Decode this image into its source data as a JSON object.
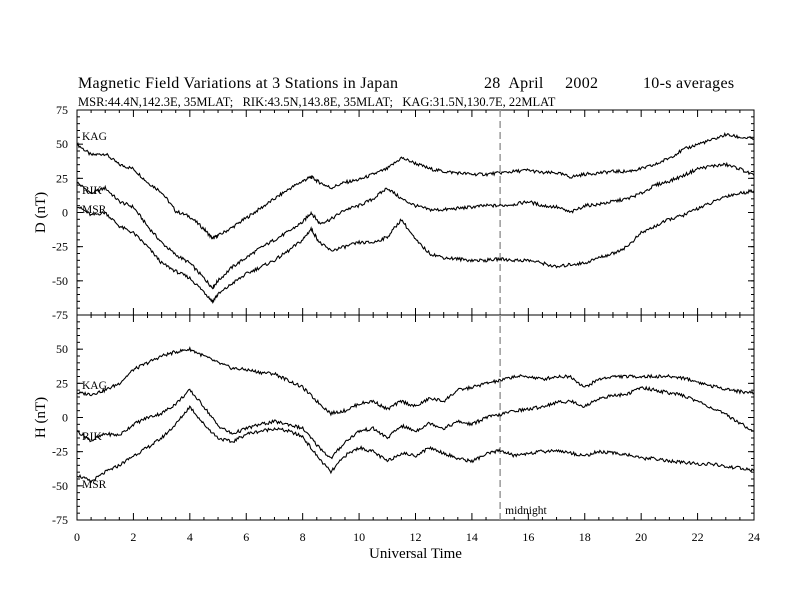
{
  "header": {
    "title": "Magnetic Field Variations at 3 Stations in Japan",
    "date": "28  April     2002",
    "averaging": "10-s averages",
    "stations_line": "MSR:44.4N,142.3E, 35MLAT;   RIK:43.5N,143.8E, 35MLAT;   KAG:31.5N,130.7E, 22MLAT"
  },
  "chart_data": [
    {
      "type": "line",
      "panel": "top",
      "ylabel": "D (nT)",
      "ylim": [
        -75,
        75
      ],
      "yticks": [
        75,
        50,
        25,
        0,
        -25,
        -50,
        -75
      ],
      "xlim": [
        0,
        24
      ],
      "xticks": [
        0,
        2,
        4,
        6,
        8,
        10,
        12,
        14,
        16,
        18,
        20,
        22,
        24
      ],
      "series": [
        {
          "name": "KAG",
          "x": [
            0,
            0.5,
            1,
            1.5,
            2,
            2.5,
            3,
            3.5,
            4,
            4.5,
            4.8,
            5,
            5.5,
            6,
            6.5,
            7,
            7.5,
            8,
            8.3,
            8.6,
            9,
            9.5,
            10,
            10.5,
            11,
            11.5,
            12,
            12.5,
            13,
            13.5,
            14,
            14.5,
            15,
            15.5,
            16,
            16.5,
            17,
            17.5,
            18,
            18.5,
            19,
            19.5,
            20,
            20.5,
            21,
            21.5,
            22,
            22.5,
            23,
            23.5,
            24
          ],
          "y": [
            50,
            42,
            43,
            35,
            32,
            22,
            15,
            1,
            -3,
            -12,
            -19,
            -17,
            -11,
            -4,
            3,
            10,
            17,
            23,
            26,
            22,
            18,
            22,
            24,
            28,
            32,
            40,
            36,
            32,
            30,
            29,
            28,
            28,
            29,
            30,
            31,
            29,
            29,
            26,
            28,
            29,
            30,
            30,
            32,
            35,
            40,
            46,
            50,
            53,
            57,
            55,
            54
          ]
        },
        {
          "name": "RIK",
          "x": [
            0,
            0.5,
            1,
            1.5,
            2,
            2.5,
            3,
            3.5,
            4,
            4.5,
            4.8,
            5,
            5.5,
            6,
            6.5,
            7,
            7.5,
            8,
            8.3,
            8.6,
            9,
            9.5,
            10,
            10.5,
            11,
            11.5,
            12,
            12.5,
            13,
            13.5,
            14,
            14.5,
            15,
            15.5,
            16,
            16.5,
            17,
            17.5,
            18,
            18.5,
            19,
            19.5,
            20,
            20.5,
            21,
            21.5,
            22,
            22.5,
            23,
            23.5,
            24
          ],
          "y": [
            22,
            14,
            18,
            8,
            4,
            -10,
            -22,
            -31,
            -37,
            -48,
            -55,
            -50,
            -40,
            -33,
            -26,
            -20,
            -14,
            -7,
            0,
            -8,
            -5,
            2,
            5,
            10,
            18,
            10,
            5,
            2,
            2,
            3,
            4,
            5,
            5,
            6,
            8,
            5,
            4,
            0,
            5,
            6,
            8,
            10,
            14,
            20,
            23,
            27,
            32,
            34,
            35,
            32,
            27
          ]
        },
        {
          "name": "MSR",
          "x": [
            0,
            0.5,
            1,
            1.5,
            2,
            2.5,
            3,
            3.5,
            4,
            4.5,
            4.8,
            5,
            5.5,
            6,
            6.5,
            7,
            7.5,
            8,
            8.3,
            8.6,
            9,
            9.5,
            10,
            10.5,
            11,
            11.5,
            12,
            12.5,
            13,
            13.5,
            14,
            14.5,
            15,
            15.5,
            16,
            16.5,
            17,
            17.5,
            18,
            18.5,
            19,
            19.5,
            20,
            20.5,
            21,
            21.5,
            22,
            22.5,
            23,
            23.5,
            24
          ],
          "y": [
            5,
            -2,
            0,
            -10,
            -15,
            -25,
            -37,
            -43,
            -48,
            -58,
            -65,
            -60,
            -52,
            -45,
            -40,
            -35,
            -28,
            -20,
            -12,
            -22,
            -28,
            -25,
            -22,
            -22,
            -18,
            -5,
            -20,
            -30,
            -33,
            -34,
            -35,
            -35,
            -34,
            -35,
            -35,
            -37,
            -40,
            -38,
            -37,
            -33,
            -30,
            -25,
            -15,
            -10,
            -5,
            -2,
            3,
            7,
            12,
            14,
            16
          ]
        }
      ]
    },
    {
      "type": "line",
      "panel": "bottom",
      "ylabel": "H (nT)",
      "xlabel": "Universal Time",
      "ylim": [
        -75,
        75
      ],
      "yticks": [
        50,
        25,
        0,
        -25,
        -50,
        -75
      ],
      "xlim": [
        0,
        24
      ],
      "xticks": [
        0,
        2,
        4,
        6,
        8,
        10,
        12,
        14,
        16,
        18,
        20,
        22,
        24
      ],
      "annotation": {
        "text": "midnight",
        "x": 15
      },
      "series": [
        {
          "name": "KAG",
          "x": [
            0,
            0.5,
            1,
            1.5,
            2,
            2.5,
            3,
            3.5,
            4,
            4.5,
            5,
            5.5,
            6,
            6.5,
            7,
            7.5,
            8,
            8.5,
            9,
            9.5,
            10,
            10.5,
            11,
            11.5,
            12,
            12.5,
            13,
            13.5,
            14,
            14.5,
            15,
            15.5,
            16,
            16.5,
            17,
            17.5,
            18,
            18.5,
            19,
            19.5,
            20,
            20.5,
            21,
            21.5,
            22,
            22.5,
            23,
            23.5,
            24
          ],
          "y": [
            18,
            17,
            20,
            25,
            35,
            40,
            45,
            48,
            50,
            45,
            40,
            36,
            35,
            33,
            32,
            27,
            22,
            12,
            3,
            5,
            10,
            12,
            6,
            12,
            8,
            14,
            12,
            20,
            22,
            25,
            27,
            30,
            30,
            28,
            30,
            30,
            22,
            28,
            30,
            30,
            30,
            30,
            30,
            29,
            26,
            23,
            21,
            19,
            18
          ]
        },
        {
          "name": "RIK",
          "x": [
            0,
            0.5,
            1,
            1.5,
            2,
            2.5,
            3,
            3.5,
            4,
            4.5,
            5,
            5.5,
            6,
            6.5,
            7,
            7.5,
            8,
            8.5,
            9,
            9.5,
            10,
            10.5,
            11,
            11.5,
            12,
            12.5,
            13,
            13.5,
            14,
            14.5,
            15,
            15.5,
            16,
            16.5,
            17,
            17.5,
            18,
            18.5,
            19,
            19.5,
            20,
            20.5,
            21,
            21.5,
            22,
            22.5,
            23,
            23.5,
            24
          ],
          "y": [
            -10,
            -17,
            -12,
            -13,
            -5,
            0,
            3,
            10,
            20,
            8,
            -6,
            -12,
            -8,
            -5,
            -3,
            -5,
            -8,
            -20,
            -30,
            -18,
            -10,
            -8,
            -15,
            -6,
            -10,
            -4,
            -8,
            -3,
            -5,
            0,
            2,
            5,
            6,
            8,
            11,
            12,
            8,
            14,
            16,
            17,
            22,
            20,
            18,
            16,
            12,
            7,
            2,
            -4,
            -10
          ]
        },
        {
          "name": "MSR",
          "x": [
            0,
            0.5,
            1,
            1.5,
            2,
            2.5,
            3,
            3.5,
            4,
            4.5,
            5,
            5.5,
            6,
            6.5,
            7,
            7.5,
            8,
            8.5,
            9,
            9.5,
            10,
            10.5,
            11,
            11.5,
            12,
            12.5,
            13,
            13.5,
            14,
            14.5,
            15,
            15.5,
            16,
            16.5,
            17,
            17.5,
            18,
            18.5,
            19,
            19.5,
            20,
            20.5,
            21,
            21.5,
            22,
            22.5,
            23,
            23.5,
            24
          ],
          "y": [
            -42,
            -47,
            -40,
            -35,
            -28,
            -22,
            -15,
            -5,
            8,
            -5,
            -15,
            -18,
            -12,
            -10,
            -8,
            -10,
            -14,
            -28,
            -40,
            -28,
            -22,
            -25,
            -32,
            -26,
            -28,
            -22,
            -26,
            -30,
            -32,
            -27,
            -24,
            -28,
            -26,
            -25,
            -24,
            -26,
            -28,
            -25,
            -26,
            -27,
            -30,
            -30,
            -32,
            -33,
            -34,
            -34,
            -36,
            -37,
            -39
          ]
        }
      ]
    }
  ]
}
